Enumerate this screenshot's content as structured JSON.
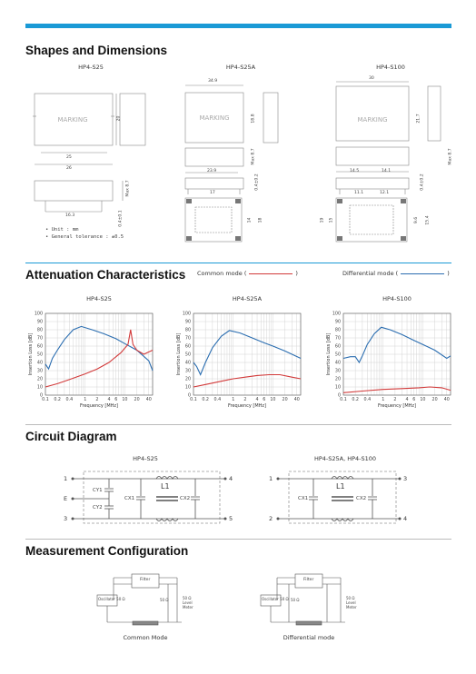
{
  "sections": {
    "shapes": {
      "title": "Shapes and Dimensions",
      "models": [
        "HP4-S25",
        "HP4-S25A",
        "HP4-S100"
      ],
      "marking": "MARKING",
      "s25_dims": {
        "d20": "20",
        "d25": "25",
        "d26": "26",
        "d16_3": "16.3",
        "d8_7": "Max 8.7",
        "pin": "0.4±0.1"
      },
      "s25a_dims": {
        "d34_9": "34.9",
        "d18_8": "18.8",
        "d8_7": "Max 8.7",
        "d23_9": "23.9",
        "pin": "0.4±0.2",
        "d17": "17",
        "d14": "14",
        "d18": "18"
      },
      "s100_dims": {
        "d30": "30",
        "d21_7": "21.7",
        "d8_7": "Max 8.7",
        "d14_5": "14.5",
        "d14_1": "14.1",
        "pin": "0.4±0.2",
        "d11_1": "11.1",
        "d12_1": "12.1",
        "d9_6": "9.6",
        "d15_4": "15.4",
        "d19": "19",
        "d15": "15"
      },
      "notes": [
        "Unit : mm",
        "General tolerance : ±0.5"
      ]
    },
    "attenuation": {
      "title": "Attenuation Characteristics",
      "legend_common": "Common mode (",
      "legend_differential": "Differential mode (",
      "legend_close": ")"
    },
    "circuit": {
      "title": "Circuit Diagram",
      "left_title": "HP4-S25",
      "right_title": "HP4-S25A, HP4-S100",
      "left_pins": [
        "1",
        "E",
        "3",
        "4",
        "5"
      ],
      "right_pins": [
        "1",
        "2",
        "3",
        "4"
      ],
      "labels": {
        "cy1": "CY1",
        "cy2": "CY2",
        "cx1": "CX1",
        "cx2": "CX2",
        "l1": "L1"
      }
    },
    "measurement": {
      "title": "Measurement Configuration",
      "left_caption": "Common Mode",
      "right_caption": "Differential mode",
      "filter": "Filter",
      "oscillator": "Oscillator 50 Ω",
      "r50": "50 Ω",
      "level_meter": "50 Ω Level Meter"
    }
  },
  "chart_data": [
    {
      "type": "line",
      "title": "HP4-S25",
      "xlabel": "Frequency [MHz]",
      "ylabel": "Insertion Loss [dB]",
      "xscale": "log",
      "xlim": [
        0.1,
        50
      ],
      "ylim": [
        0,
        100
      ],
      "xticks": [
        "0.1",
        "0.2",
        "0.4",
        "1",
        "2",
        "4",
        "6",
        "10",
        "20",
        "40"
      ],
      "yticks": [
        "0",
        "10",
        "20",
        "30",
        "40",
        "50",
        "60",
        "70",
        "80",
        "90",
        "100"
      ],
      "grid": true,
      "series": [
        {
          "name": "Differential mode",
          "color": "#2a6db0",
          "x": [
            0.1,
            0.12,
            0.15,
            0.2,
            0.3,
            0.5,
            0.8,
            1.5,
            3,
            6,
            10,
            20,
            40,
            50
          ],
          "y": [
            38,
            32,
            45,
            55,
            68,
            80,
            84,
            80,
            75,
            69,
            63,
            55,
            42,
            30
          ]
        },
        {
          "name": "Common mode",
          "color": "#d23a3a",
          "x": [
            0.1,
            0.2,
            0.4,
            1,
            2,
            4,
            8,
            12,
            14,
            16,
            20,
            30,
            50
          ],
          "y": [
            10,
            14,
            19,
            26,
            32,
            40,
            52,
            62,
            80,
            62,
            55,
            50,
            55
          ]
        }
      ]
    },
    {
      "type": "line",
      "title": "HP4-S25A",
      "xlabel": "Frequency [MHz]",
      "ylabel": "Insertion Loss [dB]",
      "xscale": "log",
      "xlim": [
        0.1,
        50
      ],
      "ylim": [
        0,
        100
      ],
      "xticks": [
        "0.1",
        "0.2",
        "0.4",
        "1",
        "2",
        "4",
        "6",
        "10",
        "20",
        "40"
      ],
      "yticks": [
        "0",
        "10",
        "20",
        "30",
        "40",
        "50",
        "60",
        "70",
        "80",
        "90",
        "100"
      ],
      "grid": true,
      "series": [
        {
          "name": "Differential mode",
          "color": "#2a6db0",
          "x": [
            0.1,
            0.12,
            0.15,
            0.2,
            0.3,
            0.5,
            0.8,
            1.5,
            3,
            6,
            10,
            20,
            50
          ],
          "y": [
            40,
            35,
            25,
            40,
            58,
            72,
            79,
            76,
            70,
            64,
            60,
            54,
            45
          ]
        },
        {
          "name": "Common mode",
          "color": "#d23a3a",
          "x": [
            0.1,
            0.2,
            0.5,
            1,
            2,
            4,
            8,
            15,
            30,
            50
          ],
          "y": [
            10,
            13,
            17,
            20,
            22,
            24,
            25,
            25,
            22,
            20
          ]
        }
      ]
    },
    {
      "type": "line",
      "title": "HP4-S100",
      "xlabel": "Frequency [MHz]",
      "ylabel": "Insertion Loss [dB]",
      "xscale": "log",
      "xlim": [
        0.1,
        50
      ],
      "ylim": [
        0,
        100
      ],
      "xticks": [
        "0.1",
        "0.2",
        "0.4",
        "1",
        "2",
        "4",
        "6",
        "10",
        "20",
        "40"
      ],
      "yticks": [
        "0",
        "10",
        "20",
        "30",
        "40",
        "50",
        "60",
        "70",
        "80",
        "90",
        "100"
      ],
      "grid": true,
      "series": [
        {
          "name": "Differential mode",
          "color": "#2a6db0",
          "x": [
            0.1,
            0.15,
            0.2,
            0.25,
            0.3,
            0.4,
            0.6,
            0.9,
            1.5,
            3,
            6,
            10,
            20,
            40,
            50
          ],
          "y": [
            45,
            47,
            47,
            40,
            48,
            62,
            75,
            83,
            80,
            74,
            67,
            62,
            55,
            45,
            48
          ]
        },
        {
          "name": "Common mode",
          "color": "#d23a3a",
          "x": [
            0.1,
            0.3,
            1,
            3,
            8,
            15,
            30,
            50
          ],
          "y": [
            3,
            5,
            7,
            8,
            9,
            10,
            9,
            6
          ]
        }
      ]
    }
  ]
}
